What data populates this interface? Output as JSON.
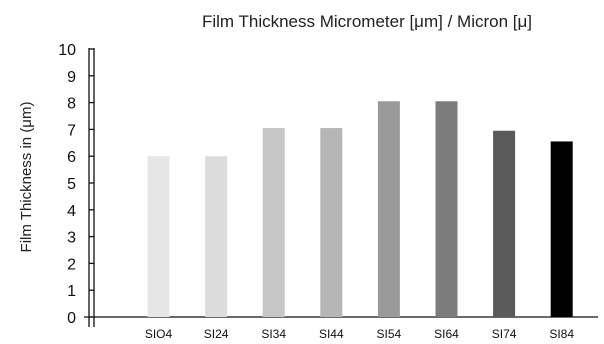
{
  "chart_data": {
    "type": "bar",
    "title": "Film Thickness Micrometer [μm] / Micron [μ]",
    "xlabel": "",
    "ylabel": "Film Thickness in (μm)",
    "categories": [
      "SIO4",
      "SI24",
      "SI34",
      "SI44",
      "SI54",
      "SI64",
      "SI74",
      "SI84"
    ],
    "values": [
      6,
      6,
      7.05,
      7.05,
      8.05,
      8.05,
      6.95,
      6.55
    ],
    "bar_colors": [
      "#e6e6e6",
      "#dcdcdc",
      "#c6c6c6",
      "#b6b6b6",
      "#9a9a9a",
      "#7c7c7c",
      "#5a5a5a",
      "#000000"
    ],
    "ylim": [
      0,
      10
    ],
    "yticks": [
      "0",
      "1",
      "2",
      "3",
      "4",
      "5",
      "6",
      "7",
      "8",
      "9",
      "10"
    ],
    "grid": false,
    "legend": "none"
  }
}
